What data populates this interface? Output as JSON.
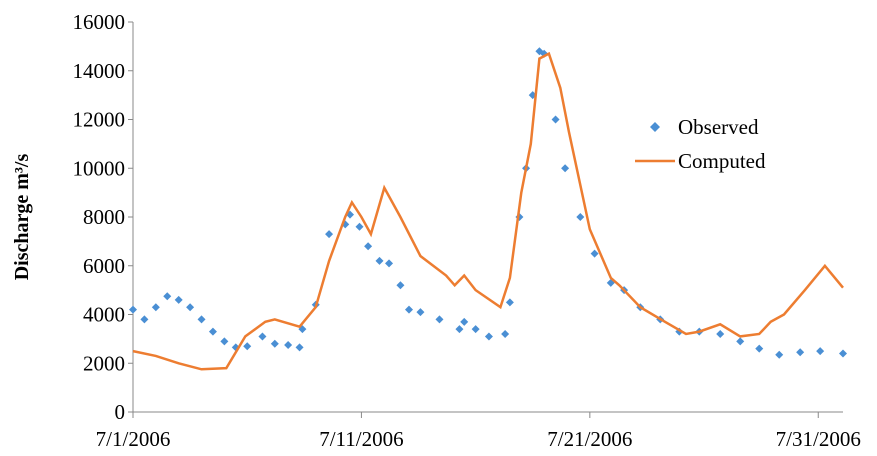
{
  "chart_data": {
    "type": "line",
    "y_label": "Discharge m³/s",
    "xlim": [
      "2006-07-01T00:00",
      "2006-08-01T02:00"
    ],
    "xticks": [
      {
        "value": "2006-07-01T00:00",
        "label": "7/1/2006"
      },
      {
        "value": "2006-07-11T00:00",
        "label": "7/11/2006"
      },
      {
        "value": "2006-07-21T00:00",
        "label": "7/21/2006"
      },
      {
        "value": "2006-07-31T00:00",
        "label": "7/31/2006"
      }
    ],
    "ylim": [
      0,
      16000
    ],
    "yticks": [
      0,
      2000,
      4000,
      6000,
      8000,
      10000,
      12000,
      14000,
      16000
    ],
    "grid": false,
    "series": [
      {
        "name": "Observed",
        "color": "#4a8fd4",
        "mode": "markers",
        "x": [
          "2006-07-01T00:00",
          "2006-07-01T12:00",
          "2006-07-02T00:00",
          "2006-07-02T12:00",
          "2006-07-03T00:00",
          "2006-07-03T12:00",
          "2006-07-04T00:00",
          "2006-07-04T12:00",
          "2006-07-05T00:00",
          "2006-07-05T12:00",
          "2006-07-06T00:00",
          "2006-07-06T16:00",
          "2006-07-07T05:00",
          "2006-07-07T19:00",
          "2006-07-08T07:00",
          "2006-07-08T10:00",
          "2006-07-09T00:00",
          "2006-07-09T14:00",
          "2006-07-10T07:00",
          "2006-07-10T12:00",
          "2006-07-10T22:00",
          "2006-07-11T07:00",
          "2006-07-11T19:00",
          "2006-07-12T05:00",
          "2006-07-12T17:00",
          "2006-07-13T02:00",
          "2006-07-13T14:00",
          "2006-07-14T10:00",
          "2006-07-15T07:00",
          "2006-07-15T12:00",
          "2006-07-16T00:00",
          "2006-07-16T14:00",
          "2006-07-17T07:00",
          "2006-07-17T12:00",
          "2006-07-17T22:00",
          "2006-07-18T05:00",
          "2006-07-18T12:00",
          "2006-07-18T19:00",
          "2006-07-19T00:00",
          "2006-07-19T12:00",
          "2006-07-19T22:00",
          "2006-07-20T14:00",
          "2006-07-21T05:00",
          "2006-07-21T22:00",
          "2006-07-22T12:00",
          "2006-07-23T05:00",
          "2006-07-24T02:00",
          "2006-07-24T22:00",
          "2006-07-25T19:00",
          "2006-07-26T17:00",
          "2006-07-27T14:00",
          "2006-07-28T10:00",
          "2006-07-29T07:00",
          "2006-07-30T05:00",
          "2006-07-31T02:00",
          "2006-08-01T02:00"
        ],
        "values": [
          4200,
          3800,
          4300,
          4750,
          4600,
          4300,
          3800,
          3300,
          2900,
          2650,
          2700,
          3100,
          2800,
          2750,
          2650,
          3400,
          4400,
          7300,
          7700,
          8100,
          7600,
          6800,
          6200,
          6100,
          5200,
          4200,
          4100,
          3800,
          3400,
          3700,
          3400,
          3100,
          3200,
          4500,
          8000,
          10000,
          13000,
          14800,
          14700,
          12000,
          10000,
          8000,
          6500,
          5300,
          5000,
          4300,
          3800,
          3300,
          3300,
          3200,
          2900,
          2600,
          2350,
          2450,
          2500,
          2400
        ]
      },
      {
        "name": "Computed",
        "color": "#ed7d31",
        "mode": "line",
        "x": [
          "2006-07-01T00:00",
          "2006-07-02T00:00",
          "2006-07-03T00:00",
          "2006-07-04T00:00",
          "2006-07-05T02:00",
          "2006-07-05T22:00",
          "2006-07-06T19:00",
          "2006-07-07T05:00",
          "2006-07-08T07:00",
          "2006-07-09T00:00",
          "2006-07-09T14:00",
          "2006-07-10T07:00",
          "2006-07-10T14:00",
          "2006-07-11T00:00",
          "2006-07-11T10:00",
          "2006-07-12T00:00",
          "2006-07-12T17:00",
          "2006-07-13T14:00",
          "2006-07-14T17:00",
          "2006-07-15T02:00",
          "2006-07-15T12:00",
          "2006-07-16T00:00",
          "2006-07-17T02:00",
          "2006-07-17T12:00",
          "2006-07-18T00:00",
          "2006-07-18T10:00",
          "2006-07-18T19:00",
          "2006-07-19T05:00",
          "2006-07-19T17:00",
          "2006-07-20T02:00",
          "2006-07-21T00:00",
          "2006-07-21T22:00",
          "2006-07-22T07:00",
          "2006-07-23T05:00",
          "2006-07-24T07:00",
          "2006-07-25T05:00",
          "2006-07-25T19:00",
          "2006-07-26T17:00",
          "2006-07-27T14:00",
          "2006-07-28T10:00",
          "2006-07-28T22:00",
          "2006-07-29T12:00",
          "2006-07-30T10:00",
          "2006-07-31T07:00",
          "2006-08-01T02:00"
        ],
        "values": [
          2500,
          2300,
          2000,
          1750,
          1800,
          3100,
          3700,
          3800,
          3500,
          4300,
          6200,
          8000,
          8600,
          8000,
          7300,
          9200,
          8000,
          6400,
          5600,
          5200,
          5600,
          5000,
          4300,
          5500,
          9000,
          11000,
          14500,
          14700,
          13300,
          11500,
          7500,
          5500,
          5200,
          4300,
          3700,
          3200,
          3300,
          3600,
          3100,
          3200,
          3700,
          4000,
          5000,
          6000,
          5100
        ]
      }
    ]
  }
}
